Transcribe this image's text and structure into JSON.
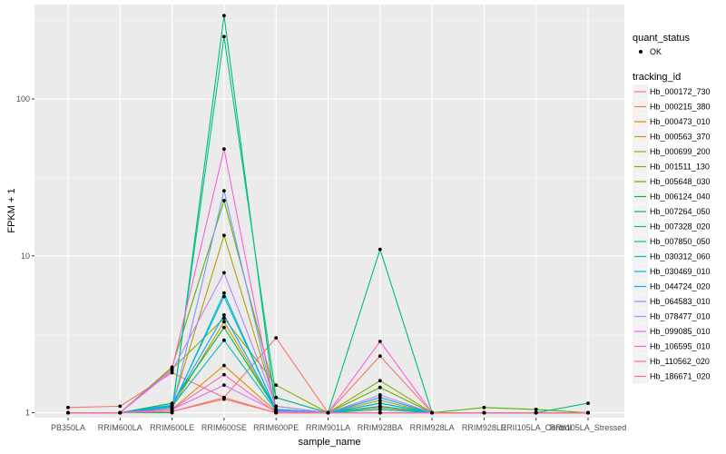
{
  "chart_data": {
    "type": "line",
    "y_scale": "log",
    "xlabel": "sample_name",
    "ylabel": "FPKM + 1",
    "categories": [
      "PB350LA",
      "RRIM600LA",
      "RRIM600LE",
      "RRIM600SE",
      "RRIM600PE",
      "RRIM901LA",
      "RRIM928BA",
      "RRIM928LA",
      "RRIM928LE",
      "RRII105LA_Control",
      "RRII105LA_Stressed"
    ],
    "ylim": [
      0.93,
      400
    ],
    "y_ticks": [
      1,
      10,
      100
    ],
    "y_tick_labels": [
      "1",
      "10",
      "100"
    ],
    "grid": true,
    "background": "#ebebeb",
    "legend_placement": "right",
    "shape_legend": {
      "title": "quant_status",
      "entries": [
        "OK"
      ]
    },
    "color_legend_title": "tracking_id",
    "series": [
      {
        "name": "Hb_000172_730",
        "color": "#f8766d",
        "values": [
          1.08,
          1.1,
          1.8,
          1.25,
          3.0,
          1.0,
          2.3,
          1.0,
          1.0,
          1.0,
          1.0
        ]
      },
      {
        "name": "Hb_000215_380",
        "color": "#ee8044",
        "values": [
          1.0,
          1.0,
          1.02,
          1.22,
          1.0,
          1.0,
          1.05,
          1.0,
          1.0,
          1.0,
          1.0
        ]
      },
      {
        "name": "Hb_000473_010",
        "color": "#de8c00",
        "values": [
          1.0,
          1.0,
          1.05,
          2.0,
          1.02,
          1.0,
          1.08,
          1.0,
          1.0,
          1.0,
          1.0
        ]
      },
      {
        "name": "Hb_000563_370",
        "color": "#c99800",
        "values": [
          1.0,
          1.0,
          1.08,
          3.8,
          1.05,
          1.0,
          1.1,
          1.0,
          1.0,
          1.0,
          1.0
        ]
      },
      {
        "name": "Hb_000699_200",
        "color": "#b0a100",
        "values": [
          1.0,
          1.0,
          1.1,
          13.5,
          1.1,
          1.0,
          1.2,
          1.0,
          1.0,
          1.0,
          1.0
        ]
      },
      {
        "name": "Hb_001511_130",
        "color": "#8faa00",
        "values": [
          1.0,
          1.0,
          1.9,
          4.0,
          1.5,
          1.0,
          1.6,
          1.0,
          1.0,
          1.0,
          1.0
        ]
      },
      {
        "name": "Hb_005648_030",
        "color": "#5bb300",
        "values": [
          1.0,
          1.0,
          1.95,
          22.5,
          1.25,
          1.0,
          1.45,
          1.0,
          1.08,
          1.05,
          1.0
        ]
      },
      {
        "name": "Hb_006124_040",
        "color": "#00ba38",
        "values": [
          1.0,
          1.0,
          1.15,
          3.5,
          1.05,
          1.0,
          1.15,
          1.0,
          1.0,
          1.0,
          1.0
        ]
      },
      {
        "name": "Hb_007264_050",
        "color": "#00be6c",
        "values": [
          1.0,
          1.0,
          1.0,
          340,
          1.0,
          1.0,
          11.0,
          1.0,
          1.0,
          1.0,
          1.15
        ]
      },
      {
        "name": "Hb_007328_020",
        "color": "#00c08e",
        "values": [
          1.0,
          1.0,
          1.05,
          250,
          1.25,
          1.0,
          1.0,
          1.0,
          1.0,
          1.0,
          1.0
        ]
      },
      {
        "name": "Hb_007850_050",
        "color": "#00bfaa",
        "values": [
          1.0,
          1.0,
          1.1,
          2.9,
          1.03,
          1.0,
          1.1,
          1.0,
          1.0,
          1.0,
          1.0
        ]
      },
      {
        "name": "Hb_030312_060",
        "color": "#00bcc6",
        "values": [
          1.0,
          1.0,
          1.08,
          5.8,
          1.04,
          1.0,
          1.05,
          1.0,
          1.0,
          1.0,
          1.0
        ]
      },
      {
        "name": "Hb_030469_010",
        "color": "#00b4e0",
        "values": [
          1.0,
          1.0,
          1.1,
          5.5,
          1.05,
          1.0,
          1.15,
          1.0,
          1.0,
          1.0,
          1.0
        ]
      },
      {
        "name": "Hb_044724_020",
        "color": "#00a8ff",
        "values": [
          1.0,
          1.0,
          1.12,
          4.2,
          1.05,
          1.0,
          1.25,
          1.0,
          1.0,
          1.0,
          1.0
        ]
      },
      {
        "name": "Hb_064583_010",
        "color": "#7f96ff",
        "values": [
          1.0,
          1.0,
          1.05,
          26,
          1.02,
          1.0,
          1.0,
          1.0,
          1.0,
          1.0,
          1.0
        ]
      },
      {
        "name": "Hb_078477_010",
        "color": "#bd81ff",
        "values": [
          1.0,
          1.0,
          1.85,
          7.8,
          1.1,
          1.0,
          1.3,
          1.0,
          1.0,
          1.0,
          1.0
        ]
      },
      {
        "name": "Hb_099085_010",
        "color": "#e76bf3",
        "values": [
          1.0,
          1.0,
          1.05,
          1.5,
          1.02,
          1.0,
          1.0,
          1.0,
          1.0,
          1.0,
          1.0
        ]
      },
      {
        "name": "Hb_106595_010",
        "color": "#fc61d5",
        "values": [
          1.0,
          1.0,
          1.9,
          48,
          1.0,
          1.0,
          2.85,
          1.0,
          1.0,
          1.0,
          1.0
        ]
      },
      {
        "name": "Hb_110562_020",
        "color": "#ff63b6",
        "values": [
          1.0,
          1.0,
          1.05,
          1.75,
          1.0,
          1.0,
          1.0,
          1.0,
          1.0,
          1.0,
          1.0
        ]
      },
      {
        "name": "Hb_186671_020",
        "color": "#ff6c91",
        "values": [
          1.0,
          1.0,
          1.02,
          1.25,
          1.0,
          1.0,
          1.0,
          1.0,
          1.0,
          1.0,
          1.0
        ]
      }
    ]
  }
}
